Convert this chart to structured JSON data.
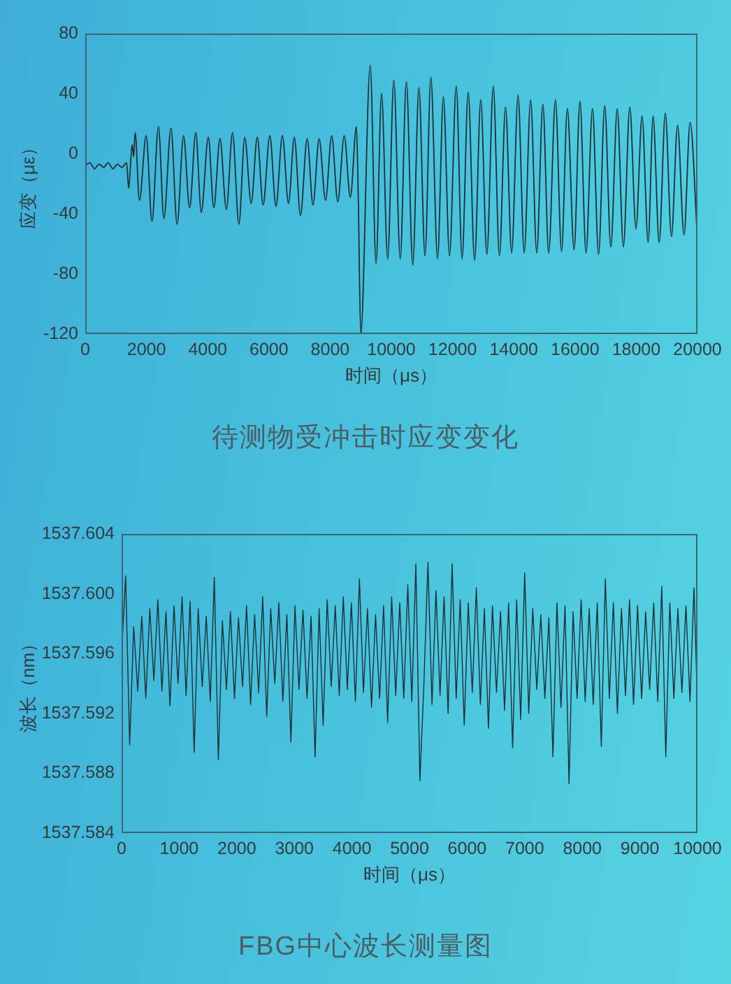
{
  "chart_data": [
    {
      "type": "line",
      "title": "待测物受冲击时应变变化",
      "xlabel": "时间（μs）",
      "ylabel": "应变（με）",
      "xlim": [
        0,
        20000
      ],
      "xticks": [
        0,
        2000,
        4000,
        6000,
        8000,
        10000,
        12000,
        14000,
        16000,
        18000,
        20000
      ],
      "ylim": [
        -120,
        80
      ],
      "yticks": [
        -120,
        -80,
        -40,
        0,
        40,
        80
      ],
      "color": "#1c3035",
      "x": [
        0,
        150,
        300,
        450,
        600,
        750,
        900,
        1050,
        1200,
        1350,
        1420,
        1530,
        1580,
        1630,
        1770,
        1990,
        2180,
        2390,
        2570,
        2800,
        3000,
        3210,
        3410,
        3610,
        3790,
        4020,
        4200,
        4400,
        4610,
        4810,
        5020,
        5210,
        5420,
        5620,
        5810,
        6030,
        6230,
        6440,
        6640,
        6830,
        7030,
        7250,
        7440,
        7640,
        7850,
        8050,
        8250,
        8460,
        8660,
        8860,
        8920,
        9000,
        9310,
        9500,
        9680,
        9880,
        10080,
        10290,
        10490,
        10700,
        10900,
        11100,
        11290,
        11510,
        11700,
        11900,
        12120,
        12310,
        12510,
        12720,
        12920,
        13120,
        13330,
        13530,
        13730,
        13930,
        14140,
        14340,
        14550,
        14750,
        14950,
        15140,
        15360,
        15560,
        15750,
        15970,
        16160,
        16360,
        16570,
        16770,
        16970,
        17170,
        17380,
        17580,
        17790,
        17990,
        18190,
        18390,
        18550,
        18750,
        18950,
        19150,
        19350,
        19560,
        19760,
        20000
      ],
      "values": [
        -8,
        -6,
        -10,
        -7,
        -9,
        -6,
        -10,
        -7,
        -9,
        -6,
        -23,
        6,
        -2,
        14,
        -31,
        12,
        -45,
        18,
        -43,
        17,
        -47,
        12,
        -36,
        14,
        -39,
        11,
        -36,
        10,
        -37,
        14,
        -47,
        11,
        -33,
        11,
        -34,
        12,
        -35,
        12,
        -33,
        11,
        -41,
        10,
        -34,
        10,
        -31,
        12,
        -32,
        12,
        -29,
        18,
        -30,
        -120,
        59,
        -73,
        40,
        -70,
        49,
        -70,
        48,
        -74,
        44,
        -68,
        51,
        -70,
        38,
        -68,
        45,
        -70,
        41,
        -71,
        36,
        -67,
        45,
        -68,
        31,
        -66,
        39,
        -66,
        36,
        -66,
        33,
        -66,
        36,
        -65,
        30,
        -64,
        35,
        -66,
        30,
        -67,
        32,
        -62,
        30,
        -62,
        31,
        -50,
        25,
        -59,
        25,
        -59,
        27,
        -55,
        19,
        -54,
        21,
        -57
      ]
    },
    {
      "type": "line",
      "title": "FBG中心波长测量图",
      "xlabel": "时间（μs）",
      "ylabel": "波长（nm）",
      "xlim": [
        0,
        10000
      ],
      "xticks": [
        0,
        1000,
        2000,
        3000,
        4000,
        5000,
        6000,
        7000,
        8000,
        9000,
        10000
      ],
      "ylim": [
        1537.584,
        1537.604
      ],
      "yticks": [
        1537.584,
        1537.588,
        1537.592,
        1537.596,
        {
          "value": 1537.6,
          "label": "1537.600"
        },
        1537.604
      ],
      "color": "#1c3035",
      "x": [
        0,
        70,
        140,
        210,
        280,
        350,
        420,
        490,
        560,
        630,
        700,
        770,
        840,
        910,
        980,
        1050,
        1120,
        1190,
        1260,
        1330,
        1400,
        1470,
        1540,
        1610,
        1680,
        1750,
        1820,
        1890,
        1960,
        2030,
        2100,
        2170,
        2240,
        2310,
        2380,
        2450,
        2520,
        2590,
        2660,
        2730,
        2800,
        2870,
        2940,
        3010,
        3080,
        3150,
        3220,
        3290,
        3360,
        3430,
        3500,
        3570,
        3640,
        3710,
        3780,
        3850,
        3920,
        3990,
        4060,
        4130,
        4200,
        4270,
        4340,
        4410,
        4480,
        4550,
        4620,
        4690,
        4760,
        4830,
        4900,
        4970,
        5040,
        5110,
        5180,
        5250,
        5320,
        5390,
        5460,
        5530,
        5600,
        5670,
        5740,
        5810,
        5880,
        5950,
        6020,
        6090,
        6160,
        6230,
        6300,
        6370,
        6440,
        6510,
        6580,
        6650,
        6720,
        6790,
        6860,
        6930,
        7000,
        7070,
        7140,
        7210,
        7280,
        7350,
        7420,
        7490,
        7560,
        7630,
        7700,
        7770,
        7840,
        7910,
        7980,
        8050,
        8120,
        8190,
        8260,
        8330,
        8400,
        8470,
        8540,
        8610,
        8680,
        8750,
        8820,
        8890,
        8960,
        9030,
        9100,
        9170,
        9240,
        9310,
        9380,
        9450,
        9520,
        9590,
        9660,
        9730,
        9800,
        9870,
        9940,
        10000
      ],
      "values": [
        1537.596,
        1537.6012,
        1537.5899,
        1537.5978,
        1537.5935,
        1537.5985,
        1537.593,
        1537.599,
        1537.5942,
        1537.5996,
        1537.5935,
        1537.5988,
        1537.5925,
        1537.5992,
        1537.594,
        1537.5998,
        1537.5932,
        1537.5995,
        1537.5894,
        1537.599,
        1537.5938,
        1537.5985,
        1537.5928,
        1537.6011,
        1537.5889,
        1537.5982,
        1537.5936,
        1537.5988,
        1537.593,
        1537.5984,
        1537.5938,
        1537.5992,
        1537.5926,
        1537.5986,
        1537.5934,
        1537.5998,
        1537.5918,
        1537.599,
        1537.594,
        1537.5994,
        1537.5928,
        1537.5986,
        1537.5901,
        1537.5992,
        1537.5936,
        1537.5989,
        1537.593,
        1537.5985,
        1537.5891,
        1537.599,
        1537.5912,
        1537.5996,
        1537.5938,
        1537.5992,
        1537.5932,
        1537.5998,
        1537.5936,
        1537.5994,
        1537.5928,
        1537.601,
        1537.5934,
        1537.599,
        1537.5924,
        1537.5986,
        1537.593,
        1537.5992,
        1537.5914,
        1537.5998,
        1537.5932,
        1537.5994,
        1537.593,
        1537.6006,
        1537.5928,
        1537.602,
        1537.5875,
        1537.594,
        1537.6021,
        1537.5926,
        1537.6002,
        1537.5932,
        1537.5998,
        1537.592,
        1537.602,
        1537.593,
        1537.5996,
        1537.5912,
        1537.5994,
        1537.5934,
        1537.6004,
        1537.5926,
        1537.599,
        1537.591,
        1537.5992,
        1537.5934,
        1537.5988,
        1537.5922,
        1537.5994,
        1537.5897,
        1537.5996,
        1537.5916,
        1537.6014,
        1537.592,
        1537.599,
        1537.5936,
        1537.5986,
        1537.593,
        1537.5984,
        1537.5891,
        1537.5994,
        1537.5924,
        1537.5992,
        1537.5873,
        1537.5988,
        1537.593,
        1537.5996,
        1537.5928,
        1537.599,
        1537.5926,
        1537.5994,
        1537.5898,
        1537.601,
        1537.593,
        1537.5994,
        1537.592,
        1537.599,
        1537.5932,
        1537.5996,
        1537.5926,
        1537.5992,
        1537.593,
        1537.5988,
        1537.5936,
        1537.5994,
        1537.5928,
        1537.6005,
        1537.5891,
        1537.5994,
        1537.593,
        1537.599,
        1537.5934,
        1537.5992,
        1537.5928,
        1537.6004,
        1537.5925
      ]
    }
  ]
}
